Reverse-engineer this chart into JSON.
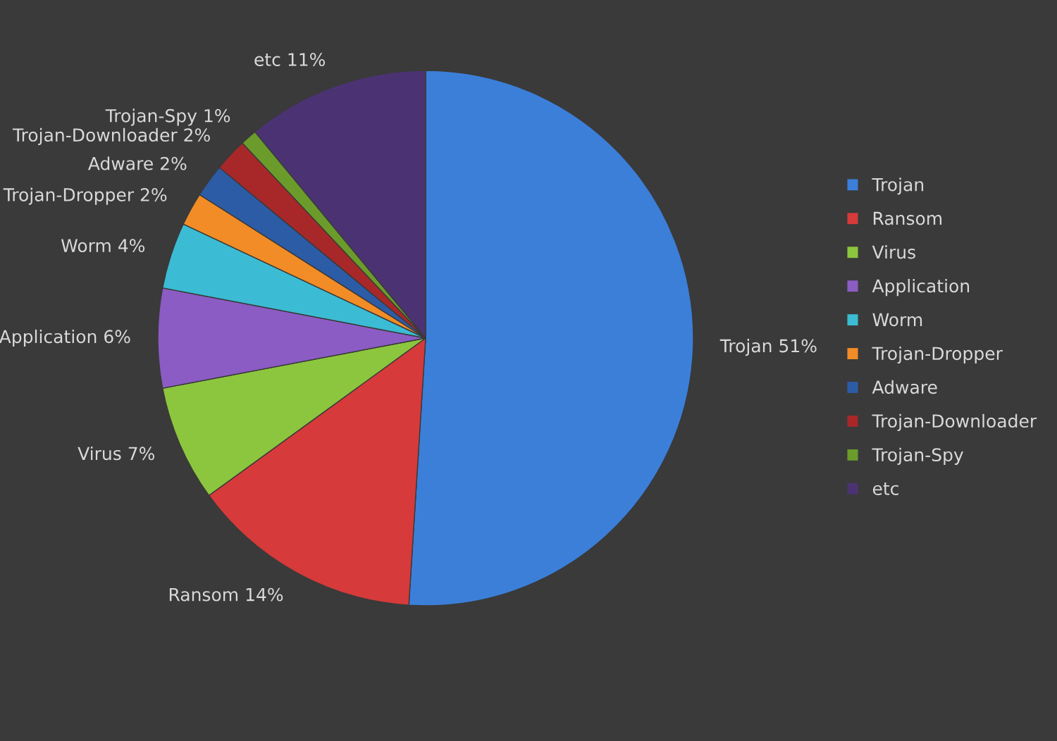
{
  "chart_data": {
    "type": "pie",
    "categories": [
      "Trojan",
      "Ransom",
      "Virus",
      "Application",
      "Worm",
      "Trojan-Dropper",
      "Adware",
      "Trojan-Downloader",
      "Trojan-Spy",
      "etc"
    ],
    "values": [
      51,
      14,
      7,
      6,
      4,
      2,
      2,
      2,
      1,
      11
    ],
    "value_labels": [
      "51%",
      "14%",
      "7%",
      "6%",
      "4%",
      "2%",
      "2%",
      "2%",
      "1%",
      "11%"
    ],
    "colors": [
      "#3b7fd9",
      "#d63a3a",
      "#8cc63e",
      "#8b5cc4",
      "#3bbcd4",
      "#f28c26",
      "#2d5ca6",
      "#a8282a",
      "#6b9c2b",
      "#4b3373"
    ],
    "legend": "right"
  }
}
